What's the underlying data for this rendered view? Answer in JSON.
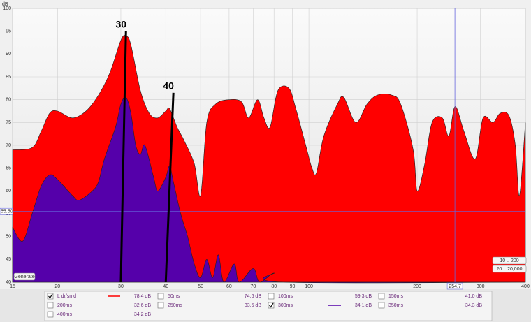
{
  "chart_data": {
    "type": "area",
    "y_label": "dB",
    "xscale": "log",
    "xlim": [
      15,
      400
    ],
    "xticks": [
      15,
      20,
      30,
      40,
      50,
      60,
      70,
      80,
      90,
      100,
      200,
      300,
      400
    ],
    "ylim": [
      40,
      100
    ],
    "yticks": [
      40,
      45,
      50,
      55,
      60,
      65,
      70,
      75,
      80,
      85,
      90,
      95,
      100
    ],
    "grid": true,
    "series": [
      {
        "name": "L dr/sn d",
        "color": "#ff0000",
        "x": [
          15,
          17,
          18,
          19,
          20,
          22,
          24,
          26,
          28,
          30,
          31,
          32,
          34,
          36,
          38,
          40,
          41,
          43,
          45,
          48,
          50,
          52,
          55,
          60,
          65,
          68,
          72,
          75,
          78,
          82,
          88,
          92,
          98,
          102,
          105,
          110,
          120,
          125,
          135,
          145,
          155,
          170,
          180,
          195,
          200,
          210,
          220,
          235,
          245,
          255,
          270,
          290,
          305,
          325,
          340,
          360,
          375,
          385,
          400
        ],
        "values": [
          69,
          69.5,
          73,
          77,
          77.5,
          76,
          77.5,
          81,
          86,
          93,
          94,
          92,
          82,
          77,
          76,
          77.5,
          78,
          74,
          71,
          66,
          59,
          75,
          79,
          80,
          79.5,
          76,
          80,
          76,
          74,
          82,
          82.5,
          78,
          70,
          65,
          64,
          72,
          79,
          80.5,
          75,
          79,
          81,
          81,
          79,
          69,
          60,
          66,
          75,
          76,
          72,
          78.5,
          73,
          67,
          76,
          75,
          77,
          76.5,
          70,
          59,
          75
        ]
      },
      {
        "name": "300ms",
        "color": "#5500aa",
        "x": [
          15,
          16,
          17,
          18,
          19,
          20,
          22,
          23,
          25,
          26,
          27,
          29,
          30,
          31,
          32,
          33,
          34,
          35,
          37,
          38,
          40,
          41,
          42,
          44,
          46,
          48,
          50,
          52,
          54,
          56,
          58,
          62,
          64,
          70,
          73,
          80,
          85,
          400
        ],
        "values": [
          52,
          49,
          55,
          61,
          63.5,
          62.5,
          59,
          58,
          60,
          62,
          67,
          74,
          79,
          80.5,
          77,
          70,
          68,
          70,
          63,
          60,
          63,
          65.5,
          62,
          55,
          50,
          44,
          41,
          45,
          41,
          46,
          40,
          44,
          40,
          43,
          40,
          42,
          40,
          40
        ]
      }
    ],
    "annotations": [
      {
        "text": "30",
        "x1": 31,
        "y1": 95,
        "x2": 30,
        "y2": 40
      },
      {
        "text": "40",
        "x1": 42,
        "y1": 81.5,
        "x2": 40,
        "y2": 40
      }
    ],
    "cursor": {
      "x": 254.7,
      "y": {
        "value": 55.5,
        "label": "55.50"
      }
    },
    "buttons": [
      "Generate",
      "10 .. 200",
      "20 .. 20,000"
    ],
    "legend_table": [
      {
        "name": "L dr/sn d",
        "reading": "78.4 dB",
        "checked": true,
        "line": "#ff0000"
      },
      {
        "name": "50ms",
        "reading": "74.6 dB",
        "checked": false
      },
      {
        "name": "100ms",
        "reading": "59.3 dB",
        "checked": false
      },
      {
        "name": "150ms",
        "reading": "41.0 dB",
        "checked": false
      },
      {
        "name": "200ms",
        "reading": "32.6 dB",
        "checked": false
      },
      {
        "name": "250ms",
        "reading": "33.5 dB",
        "checked": false
      },
      {
        "name": "300ms",
        "reading": "34.1 dB",
        "checked": true,
        "line": "#5500aa"
      },
      {
        "name": "350ms",
        "reading": "34.3 dB",
        "checked": false
      },
      {
        "name": "400ms",
        "reading": "34.2 dB",
        "checked": false
      }
    ]
  }
}
